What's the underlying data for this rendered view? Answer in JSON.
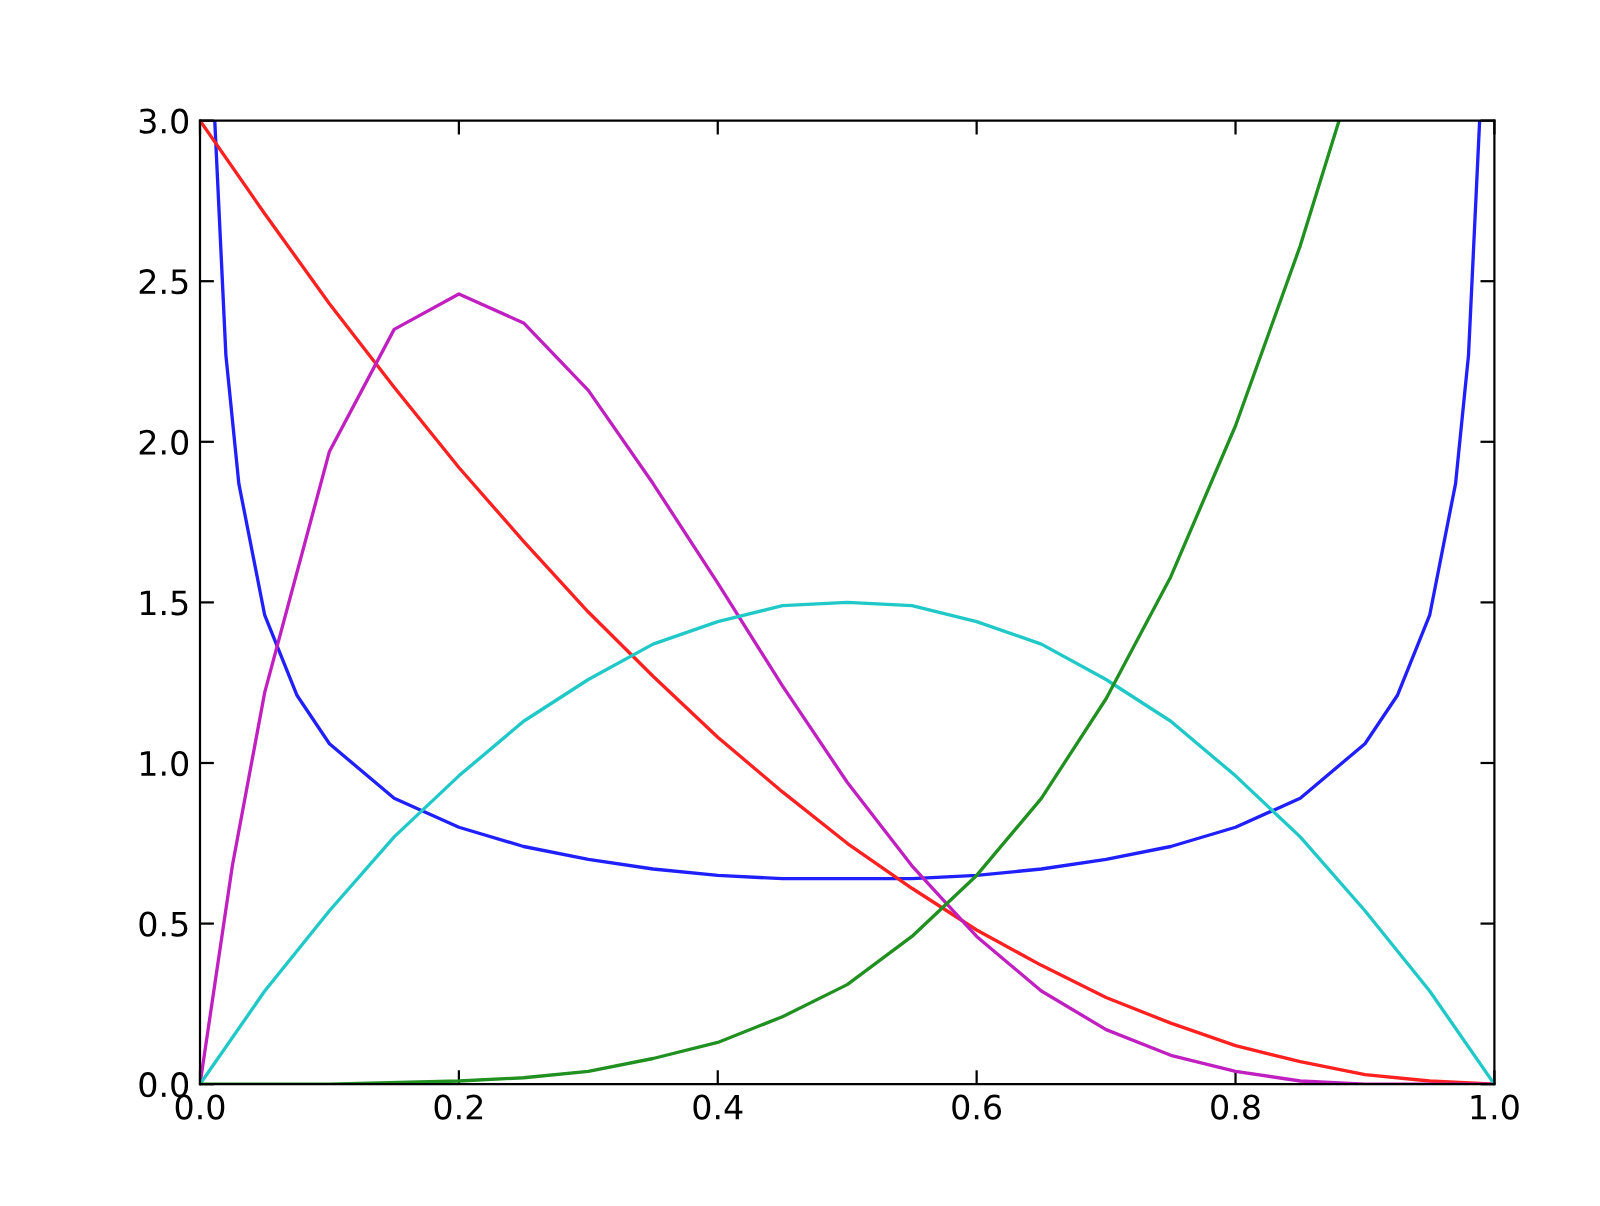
{
  "chart_data": {
    "type": "line",
    "xlim": [
      0,
      1
    ],
    "ylim": [
      0,
      3
    ],
    "xticks": [
      {
        "value": 0,
        "label": "0.0"
      },
      {
        "value": 0.2,
        "label": "0.2"
      },
      {
        "value": 0.4,
        "label": "0.4"
      },
      {
        "value": 0.6,
        "label": "0.6"
      },
      {
        "value": 0.8,
        "label": "0.8"
      },
      {
        "value": 1,
        "label": "1.0"
      }
    ],
    "yticks": [
      {
        "value": 0,
        "label": "0.0"
      },
      {
        "value": 0.5,
        "label": "0.5"
      },
      {
        "value": 1,
        "label": "1.0"
      },
      {
        "value": 1.5,
        "label": "1.5"
      },
      {
        "value": 2,
        "label": "2.0"
      },
      {
        "value": 2.5,
        "label": "2.5"
      },
      {
        "value": 3,
        "label": "3.0"
      }
    ],
    "marker": "none",
    "line_style": "solid",
    "series": [
      {
        "color": "#2020ff",
        "x": [
          0.0114,
          0.02,
          0.03,
          0.05,
          0.075,
          0.1,
          0.15,
          0.2,
          0.25,
          0.3,
          0.35,
          0.4,
          0.45,
          0.5,
          0.55,
          0.6,
          0.65,
          0.7,
          0.75,
          0.8,
          0.85,
          0.9,
          0.925,
          0.95,
          0.97,
          0.98,
          0.9886
        ],
        "values": [
          3.0,
          2.27,
          1.87,
          1.46,
          1.21,
          1.06,
          0.89,
          0.8,
          0.74,
          0.7,
          0.67,
          0.65,
          0.64,
          0.64,
          0.64,
          0.65,
          0.67,
          0.7,
          0.74,
          0.8,
          0.89,
          1.06,
          1.21,
          1.46,
          1.87,
          2.27,
          3.0
        ]
      },
      {
        "color": "#ff2020",
        "x": [
          0,
          0.05,
          0.1,
          0.15,
          0.2,
          0.25,
          0.3,
          0.35,
          0.4,
          0.45,
          0.5,
          0.55,
          0.6,
          0.65,
          0.7,
          0.75,
          0.8,
          0.85,
          0.9,
          0.95,
          1
        ],
        "values": [
          3.0,
          2.71,
          2.43,
          2.17,
          1.92,
          1.69,
          1.47,
          1.27,
          1.08,
          0.91,
          0.75,
          0.61,
          0.48,
          0.37,
          0.27,
          0.19,
          0.12,
          0.07,
          0.03,
          0.01,
          0.0
        ]
      },
      {
        "color": "#c020c0",
        "x": [
          0,
          0.025,
          0.05,
          0.1,
          0.15,
          0.2,
          0.25,
          0.3,
          0.35,
          0.4,
          0.45,
          0.5,
          0.55,
          0.6,
          0.65,
          0.7,
          0.75,
          0.8,
          0.85,
          0.9,
          0.95,
          1
        ],
        "values": [
          0.0,
          0.68,
          1.22,
          1.97,
          2.35,
          2.46,
          2.37,
          2.16,
          1.87,
          1.56,
          1.24,
          0.94,
          0.68,
          0.46,
          0.29,
          0.17,
          0.09,
          0.04,
          0.01,
          0.0,
          0.0,
          0.0
        ]
      },
      {
        "color": "#20c8c8",
        "x": [
          0,
          0.05,
          0.1,
          0.15,
          0.2,
          0.25,
          0.3,
          0.35,
          0.4,
          0.45,
          0.5,
          0.55,
          0.6,
          0.65,
          0.7,
          0.75,
          0.8,
          0.85,
          0.9,
          0.95,
          1
        ],
        "values": [
          0.0,
          0.29,
          0.54,
          0.77,
          0.96,
          1.13,
          1.26,
          1.37,
          1.44,
          1.49,
          1.5,
          1.49,
          1.44,
          1.37,
          1.26,
          1.13,
          0.96,
          0.77,
          0.54,
          0.29,
          0.0
        ]
      },
      {
        "color": "#209020",
        "x": [
          0,
          0.1,
          0.2,
          0.25,
          0.3,
          0.35,
          0.4,
          0.45,
          0.5,
          0.55,
          0.6,
          0.65,
          0.7,
          0.75,
          0.8,
          0.85,
          0.88
        ],
        "values": [
          0.0,
          0.0,
          0.01,
          0.02,
          0.04,
          0.08,
          0.13,
          0.21,
          0.31,
          0.46,
          0.65,
          0.89,
          1.2,
          1.58,
          2.05,
          2.61,
          3.0
        ]
      }
    ]
  }
}
